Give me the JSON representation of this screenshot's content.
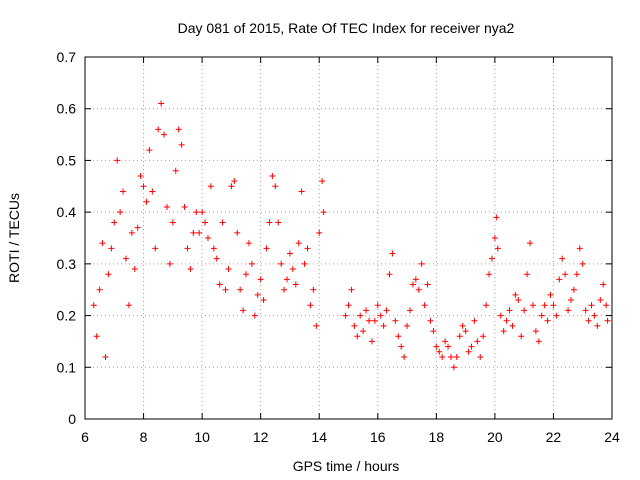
{
  "chart_data": {
    "type": "scatter",
    "title": "Day 081 of 2015, Rate Of TEC Index for receiver nya2",
    "xlabel": "GPS time / hours",
    "ylabel": "ROTI / TECUs",
    "xlim": [
      6,
      24
    ],
    "ylim": [
      0,
      0.7
    ],
    "xticks": [
      "6",
      "8",
      "10",
      "12",
      "14",
      "16",
      "18",
      "20",
      "22",
      "24"
    ],
    "yticks": [
      "0",
      "0.1",
      "0.2",
      "0.3",
      "0.4",
      "0.5",
      "0.6",
      "0.7"
    ],
    "grid": true,
    "marker": "+",
    "color": "#ff0000",
    "series": [
      {
        "name": "ROTI",
        "points": [
          [
            6.3,
            0.22
          ],
          [
            6.4,
            0.16
          ],
          [
            6.5,
            0.25
          ],
          [
            6.6,
            0.34
          ],
          [
            6.7,
            0.12
          ],
          [
            6.8,
            0.28
          ],
          [
            6.9,
            0.33
          ],
          [
            7.0,
            0.38
          ],
          [
            7.1,
            0.5
          ],
          [
            7.2,
            0.4
          ],
          [
            7.3,
            0.44
          ],
          [
            7.4,
            0.31
          ],
          [
            7.5,
            0.22
          ],
          [
            7.6,
            0.36
          ],
          [
            7.7,
            0.29
          ],
          [
            7.8,
            0.37
          ],
          [
            7.9,
            0.47
          ],
          [
            8.0,
            0.45
          ],
          [
            8.1,
            0.42
          ],
          [
            8.2,
            0.52
          ],
          [
            8.3,
            0.44
          ],
          [
            8.4,
            0.33
          ],
          [
            8.5,
            0.56
          ],
          [
            8.6,
            0.61
          ],
          [
            8.7,
            0.55
          ],
          [
            8.8,
            0.41
          ],
          [
            8.9,
            0.3
          ],
          [
            9.0,
            0.38
          ],
          [
            9.1,
            0.48
          ],
          [
            9.2,
            0.56
          ],
          [
            9.3,
            0.53
          ],
          [
            9.4,
            0.41
          ],
          [
            9.5,
            0.33
          ],
          [
            9.6,
            0.29
          ],
          [
            9.7,
            0.36
          ],
          [
            9.8,
            0.4
          ],
          [
            9.9,
            0.36
          ],
          [
            10.0,
            0.4
          ],
          [
            10.1,
            0.38
          ],
          [
            10.2,
            0.35
          ],
          [
            10.3,
            0.45
          ],
          [
            10.4,
            0.33
          ],
          [
            10.5,
            0.31
          ],
          [
            10.6,
            0.26
          ],
          [
            10.7,
            0.38
          ],
          [
            10.8,
            0.25
          ],
          [
            10.9,
            0.29
          ],
          [
            11.0,
            0.45
          ],
          [
            11.1,
            0.46
          ],
          [
            11.2,
            0.36
          ],
          [
            11.3,
            0.25
          ],
          [
            11.4,
            0.21
          ],
          [
            11.5,
            0.28
          ],
          [
            11.6,
            0.34
          ],
          [
            11.7,
            0.3
          ],
          [
            11.8,
            0.2
          ],
          [
            11.9,
            0.24
          ],
          [
            12.0,
            0.27
          ],
          [
            12.1,
            0.23
          ],
          [
            12.2,
            0.33
          ],
          [
            12.3,
            0.38
          ],
          [
            12.4,
            0.47
          ],
          [
            12.5,
            0.45
          ],
          [
            12.6,
            0.38
          ],
          [
            12.7,
            0.3
          ],
          [
            12.8,
            0.25
          ],
          [
            12.9,
            0.27
          ],
          [
            13.0,
            0.32
          ],
          [
            13.1,
            0.29
          ],
          [
            13.2,
            0.26
          ],
          [
            13.3,
            0.34
          ],
          [
            13.4,
            0.44
          ],
          [
            13.5,
            0.3
          ],
          [
            13.6,
            0.33
          ],
          [
            13.7,
            0.22
          ],
          [
            13.8,
            0.25
          ],
          [
            13.9,
            0.18
          ],
          [
            14.0,
            0.36
          ],
          [
            14.1,
            0.46
          ],
          [
            14.15,
            0.4
          ],
          [
            14.9,
            0.2
          ],
          [
            15.0,
            0.22
          ],
          [
            15.1,
            0.25
          ],
          [
            15.2,
            0.18
          ],
          [
            15.3,
            0.16
          ],
          [
            15.4,
            0.2
          ],
          [
            15.5,
            0.17
          ],
          [
            15.6,
            0.21
          ],
          [
            15.7,
            0.19
          ],
          [
            15.8,
            0.15
          ],
          [
            15.9,
            0.19
          ],
          [
            16.0,
            0.22
          ],
          [
            16.1,
            0.2
          ],
          [
            16.2,
            0.18
          ],
          [
            16.3,
            0.21
          ],
          [
            16.4,
            0.28
          ],
          [
            16.5,
            0.32
          ],
          [
            16.6,
            0.19
          ],
          [
            16.7,
            0.16
          ],
          [
            16.8,
            0.14
          ],
          [
            16.9,
            0.12
          ],
          [
            17.0,
            0.18
          ],
          [
            17.1,
            0.21
          ],
          [
            17.2,
            0.26
          ],
          [
            17.3,
            0.27
          ],
          [
            17.4,
            0.25
          ],
          [
            17.5,
            0.3
          ],
          [
            17.6,
            0.22
          ],
          [
            17.7,
            0.26
          ],
          [
            17.8,
            0.19
          ],
          [
            17.9,
            0.17
          ],
          [
            18.0,
            0.14
          ],
          [
            18.1,
            0.13
          ],
          [
            18.2,
            0.12
          ],
          [
            18.3,
            0.15
          ],
          [
            18.4,
            0.14
          ],
          [
            18.5,
            0.12
          ],
          [
            18.6,
            0.1
          ],
          [
            18.7,
            0.12
          ],
          [
            18.8,
            0.16
          ],
          [
            18.9,
            0.18
          ],
          [
            19.0,
            0.17
          ],
          [
            19.1,
            0.13
          ],
          [
            19.2,
            0.14
          ],
          [
            19.3,
            0.19
          ],
          [
            19.4,
            0.15
          ],
          [
            19.5,
            0.12
          ],
          [
            19.6,
            0.16
          ],
          [
            19.7,
            0.22
          ],
          [
            19.8,
            0.28
          ],
          [
            19.9,
            0.31
          ],
          [
            20.0,
            0.35
          ],
          [
            20.05,
            0.39
          ],
          [
            20.1,
            0.33
          ],
          [
            20.2,
            0.2
          ],
          [
            20.3,
            0.17
          ],
          [
            20.4,
            0.19
          ],
          [
            20.5,
            0.21
          ],
          [
            20.6,
            0.18
          ],
          [
            20.7,
            0.24
          ],
          [
            20.8,
            0.23
          ],
          [
            20.9,
            0.16
          ],
          [
            21.0,
            0.21
          ],
          [
            21.1,
            0.28
          ],
          [
            21.2,
            0.34
          ],
          [
            21.3,
            0.22
          ],
          [
            21.4,
            0.17
          ],
          [
            21.5,
            0.15
          ],
          [
            21.6,
            0.2
          ],
          [
            21.7,
            0.22
          ],
          [
            21.8,
            0.19
          ],
          [
            21.9,
            0.24
          ],
          [
            22.0,
            0.22
          ],
          [
            22.1,
            0.2
          ],
          [
            22.2,
            0.27
          ],
          [
            22.3,
            0.31
          ],
          [
            22.4,
            0.28
          ],
          [
            22.5,
            0.21
          ],
          [
            22.6,
            0.23
          ],
          [
            22.7,
            0.25
          ],
          [
            22.8,
            0.28
          ],
          [
            22.9,
            0.33
          ],
          [
            23.0,
            0.3
          ],
          [
            23.1,
            0.21
          ],
          [
            23.2,
            0.19
          ],
          [
            23.3,
            0.22
          ],
          [
            23.4,
            0.2
          ],
          [
            23.5,
            0.18
          ],
          [
            23.6,
            0.23
          ],
          [
            23.7,
            0.26
          ],
          [
            23.8,
            0.22
          ],
          [
            23.85,
            0.19
          ]
        ]
      }
    ]
  }
}
